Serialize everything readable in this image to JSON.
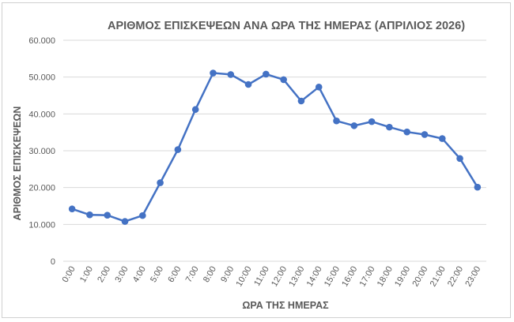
{
  "chart_data": {
    "type": "line",
    "title": "ΑΡΙΘΜΟΣ ΕΠΙΣΚΕΨΕΩΝ ΑΝΑ ΩΡΑ ΤΗΣ ΗΜΕΡΑΣ (ΑΠΡΙΛΙΟΣ 2026)",
    "xlabel": "ΩΡΑ ΤΗΣ ΗΜΕΡΑΣ",
    "ylabel": "ΑΡΙΘΜΟΣ ΕΠΙΣΚΕΨΕΩΝ",
    "categories": [
      "0:00",
      "1:00",
      "2:00",
      "3:00",
      "4:00",
      "5:00",
      "6:00",
      "7:00",
      "8:00",
      "9:00",
      "10:00",
      "11:00",
      "12:00",
      "13:00",
      "14:00",
      "15:00",
      "16:00",
      "17:00",
      "18:00",
      "19:00",
      "20:00",
      "21:00",
      "22:00",
      "23:00"
    ],
    "values": [
      14200,
      12600,
      12500,
      10800,
      12400,
      21300,
      30300,
      41200,
      51100,
      50700,
      48000,
      50800,
      49300,
      43500,
      47300,
      38100,
      36800,
      37900,
      36400,
      35100,
      34400,
      33300,
      27900,
      20100
    ],
    "ylim": [
      0,
      60000
    ],
    "yticks": [
      0,
      10000,
      20000,
      30000,
      40000,
      50000,
      60000
    ],
    "ytick_labels": [
      "0",
      "10.000",
      "20.000",
      "30.000",
      "40.000",
      "50.000",
      "60.000"
    ],
    "grid": true,
    "line_color": "#4472c4",
    "grid_color": "#d9d9d9"
  }
}
